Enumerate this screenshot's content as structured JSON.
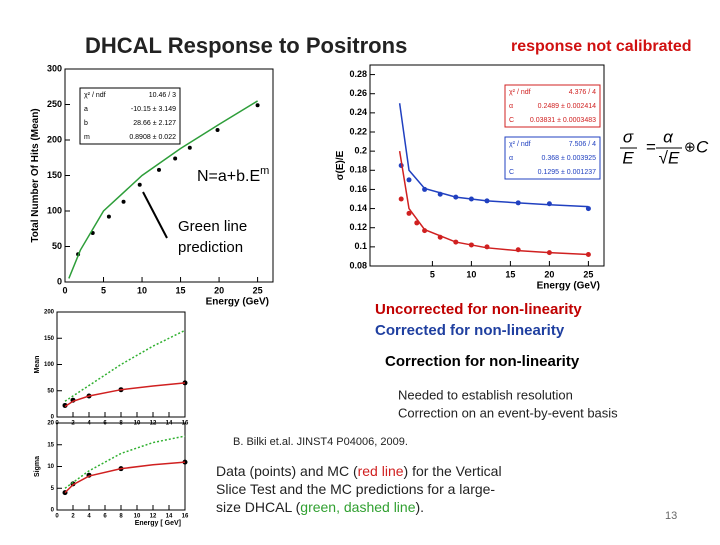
{
  "slide": {
    "title": "DHCAL Response to Positrons",
    "subtitle": "response not calibrated",
    "fit_label": {
      "text": "N=a+b.E",
      "superscript": "m"
    },
    "green_note": [
      "Green line",
      "prediction"
    ],
    "formula": {
      "lhs_num": "σ",
      "lhs_den": "E",
      "eq": "=",
      "rhs_num": "α",
      "rhs_den": "√E",
      "op": "⊕",
      "const": "C"
    },
    "heading": "Correction for non-linearity",
    "bullets": [
      "Needed to establish resolution",
      "Correction on an event-by-event basis"
    ],
    "reference": "B. Bilki et.al. JINST4 P04006, 2009.",
    "paragraph": [
      [
        "Data (points) and MC (",
        "red line",
        ") for the Vertical"
      ],
      [
        "Slice Test and the MC predictions for a large-"
      ],
      [
        "size DHCAL (",
        "green, dashed line",
        ")."
      ]
    ],
    "page_number": "13"
  },
  "chart_data": [
    {
      "type": "scatter",
      "xlabel": "Energy (GeV)",
      "ylabel": "Total Number Of Hits (Mean)",
      "xlim": [
        0,
        27
      ],
      "ylim": [
        0,
        300
      ],
      "xticks": [
        0,
        5,
        10,
        15,
        20,
        25
      ],
      "yticks": [
        0,
        50,
        100,
        150,
        200,
        250,
        300
      ],
      "stats": [
        {
          "color": "#000000",
          "rows": [
            [
              "χ² / ndf",
              "10.46 / 3"
            ],
            [
              "a",
              "-10.15 ± 3.149"
            ],
            [
              "b",
              "28.66 ± 2.127"
            ],
            [
              "m",
              "0.8908 ± 0.022"
            ]
          ]
        }
      ],
      "series": [
        {
          "color": "#000000",
          "style": "markers",
          "x": [
            1.7,
            3.6,
            5.7,
            7.6,
            9.7,
            12.2,
            14.3,
            16.2,
            19.8,
            25
          ],
          "values": [
            39,
            69,
            92,
            113,
            137,
            158,
            174,
            189,
            214,
            249
          ]
        },
        {
          "color": "#2e9e3a",
          "style": "line",
          "x": [
            0.5,
            2,
            5,
            10,
            15,
            20,
            25
          ],
          "values": [
            5,
            45,
            100,
            150,
            188,
            222,
            255
          ]
        }
      ]
    },
    {
      "type": "scatter",
      "xlabel": "Energy (GeV)",
      "ylabel": "σ(E)/E",
      "xlim": [
        -3,
        27
      ],
      "ylim": [
        0.08,
        0.29
      ],
      "xticks": [
        5,
        10,
        15,
        20,
        25
      ],
      "yticks": [
        0.08,
        0.1,
        0.12,
        0.14,
        0.16,
        0.18,
        0.2,
        0.22,
        0.24,
        0.26,
        0.28
      ],
      "stats": [
        {
          "color": "#d02020",
          "rows": [
            [
              "χ² / ndf",
              "4.376 / 4"
            ],
            [
              "α",
              "0.2489 ± 0.002414"
            ],
            [
              "C",
              "0.03831 ± 0.0003483"
            ]
          ]
        },
        {
          "color": "#2040c0",
          "rows": [
            [
              "χ² / ndf",
              "7.506 / 4"
            ],
            [
              "α",
              "0.368 ± 0.003925"
            ],
            [
              "C",
              "0.1295 ± 0.001237"
            ]
          ]
        }
      ],
      "series": [
        {
          "name": "Uncorrected for non-linearity",
          "color": "#d02020",
          "style": "markers",
          "x": [
            1,
            2,
            3,
            4,
            6,
            8,
            10,
            12,
            16,
            20,
            25
          ],
          "values": [
            0.15,
            0.135,
            0.125,
            0.117,
            0.11,
            0.105,
            0.102,
            0.1,
            0.097,
            0.094,
            0.092
          ]
        },
        {
          "name": "Corrected for non-linearity",
          "color": "#2040c0",
          "style": "markers",
          "x": [
            1,
            2,
            4,
            6,
            8,
            10,
            12,
            16,
            20,
            25
          ],
          "values": [
            0.185,
            0.17,
            0.16,
            0.155,
            0.152,
            0.15,
            0.148,
            0.146,
            0.145,
            0.14
          ]
        },
        {
          "color": "#d02020",
          "style": "line",
          "x": [
            0.8,
            2,
            4,
            8,
            12,
            16,
            20,
            25
          ],
          "values": [
            0.2,
            0.14,
            0.118,
            0.105,
            0.099,
            0.096,
            0.094,
            0.092
          ]
        },
        {
          "color": "#2040c0",
          "style": "line",
          "x": [
            0.8,
            2,
            4,
            8,
            12,
            16,
            20,
            25
          ],
          "values": [
            0.25,
            0.18,
            0.161,
            0.152,
            0.148,
            0.146,
            0.144,
            0.142
          ]
        }
      ]
    },
    {
      "type": "scatter",
      "ylabel": "Mean",
      "xlim": [
        0,
        16
      ],
      "ylim": [
        0,
        200
      ],
      "xticks": [
        0,
        2,
        4,
        6,
        8,
        10,
        12,
        14,
        16
      ],
      "yticks": [
        0,
        50,
        100,
        150,
        200
      ],
      "series": [
        {
          "color": "#000000",
          "style": "markers",
          "x": [
            1,
            2,
            4,
            8,
            16
          ],
          "values": [
            22,
            32,
            40,
            52,
            65
          ]
        },
        {
          "color": "#d02020",
          "style": "line",
          "x": [
            1,
            2,
            4,
            8,
            12,
            16
          ],
          "values": [
            20,
            30,
            40,
            52,
            59,
            65
          ]
        },
        {
          "color": "#30b030",
          "style": "dashed",
          "x": [
            1,
            4,
            8,
            12,
            16
          ],
          "values": [
            30,
            60,
            100,
            135,
            165
          ]
        }
      ]
    },
    {
      "type": "scatter",
      "xlabel": "Energy [ GeV]",
      "ylabel": "Sigma",
      "xlim": [
        0,
        16
      ],
      "ylim": [
        0,
        20
      ],
      "xticks": [
        0,
        2,
        4,
        6,
        8,
        10,
        12,
        14,
        16
      ],
      "yticks": [
        0,
        5,
        10,
        15,
        20
      ],
      "series": [
        {
          "color": "#000000",
          "style": "markers",
          "x": [
            1,
            2,
            4,
            8,
            16
          ],
          "values": [
            4,
            6,
            8,
            9.5,
            11
          ]
        },
        {
          "color": "#d02020",
          "style": "line",
          "x": [
            1,
            2,
            4,
            8,
            12,
            16
          ],
          "values": [
            4,
            5.8,
            7.8,
            9.5,
            10.4,
            11
          ]
        },
        {
          "color": "#30b030",
          "style": "dashed",
          "x": [
            1,
            4,
            8,
            12,
            16
          ],
          "values": [
            5,
            9,
            13,
            15.5,
            17
          ]
        }
      ]
    }
  ]
}
